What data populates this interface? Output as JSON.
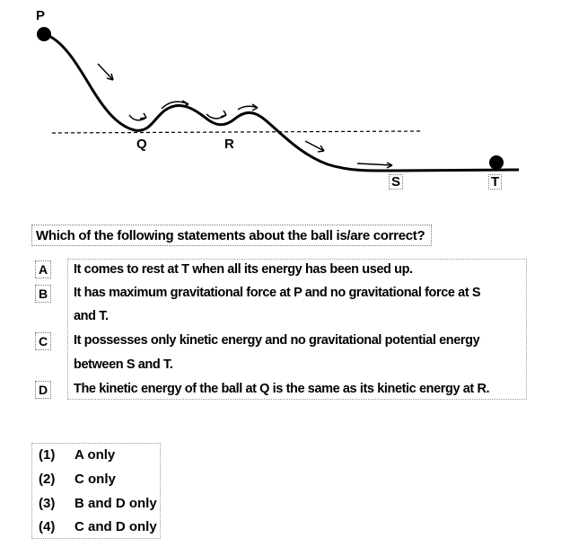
{
  "diagram": {
    "points": [
      {
        "id": "P",
        "label": "P"
      },
      {
        "id": "Q",
        "label": "Q"
      },
      {
        "id": "R",
        "label": "R"
      },
      {
        "id": "S",
        "label": "S"
      },
      {
        "id": "T",
        "label": "T"
      }
    ]
  },
  "question": "Which of the following statements about the ball is/are correct?",
  "statements": [
    {
      "letter": "A",
      "lines": [
        "It comes to rest at T when all its energy has been used up."
      ]
    },
    {
      "letter": "B",
      "lines": [
        "It has maximum gravitational force at P and no gravitational force at S",
        "and T."
      ]
    },
    {
      "letter": "C",
      "lines": [
        "It possesses only kinetic energy and no gravitational potential energy",
        "between S and T."
      ]
    },
    {
      "letter": "D",
      "lines": [
        "The kinetic energy of the ball at Q is the same as its kinetic energy at R."
      ]
    }
  ],
  "options": [
    {
      "num": "(1)",
      "text": "A only"
    },
    {
      "num": "(2)",
      "text": "C only"
    },
    {
      "num": "(3)",
      "text": "B and D only"
    },
    {
      "num": "(4)",
      "text": "C and D only"
    }
  ]
}
